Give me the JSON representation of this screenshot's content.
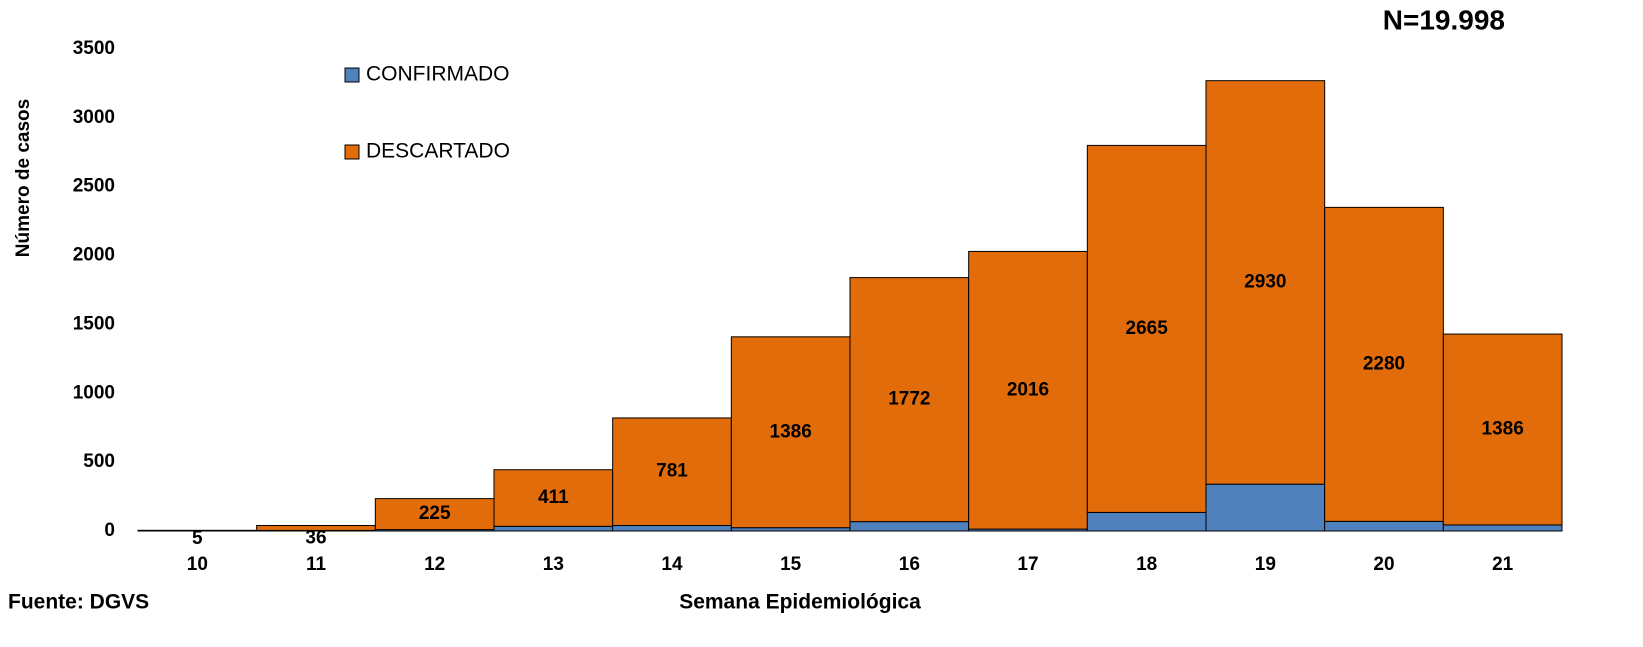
{
  "chart_data": {
    "type": "stacked_bar",
    "title": "N=19.998",
    "y_label": "Número de casos",
    "x_label": "Semana Epidemiológica",
    "source": "Fuente: DGVS",
    "categories": [
      "10",
      "11",
      "12",
      "13",
      "14",
      "15",
      "16",
      "17",
      "18",
      "19",
      "20",
      "21"
    ],
    "series": [
      {
        "name": "CONFIRMADO",
        "color": "#4f81bd",
        "values": [
          0,
          4,
          10,
          34,
          40,
          24,
          68,
          14,
          135,
          340,
          70,
          44
        ]
      },
      {
        "name": "DESCARTADO",
        "color": "#e36c0a",
        "values": [
          5,
          36,
          225,
          411,
          781,
          1386,
          1772,
          2016,
          2665,
          2930,
          2280,
          1386
        ]
      }
    ],
    "ylim": [
      0,
      3500
    ],
    "yticks": [
      0,
      500,
      1000,
      1500,
      2000,
      2500,
      3000,
      3500
    ],
    "grid": false,
    "legend": "top-left"
  }
}
